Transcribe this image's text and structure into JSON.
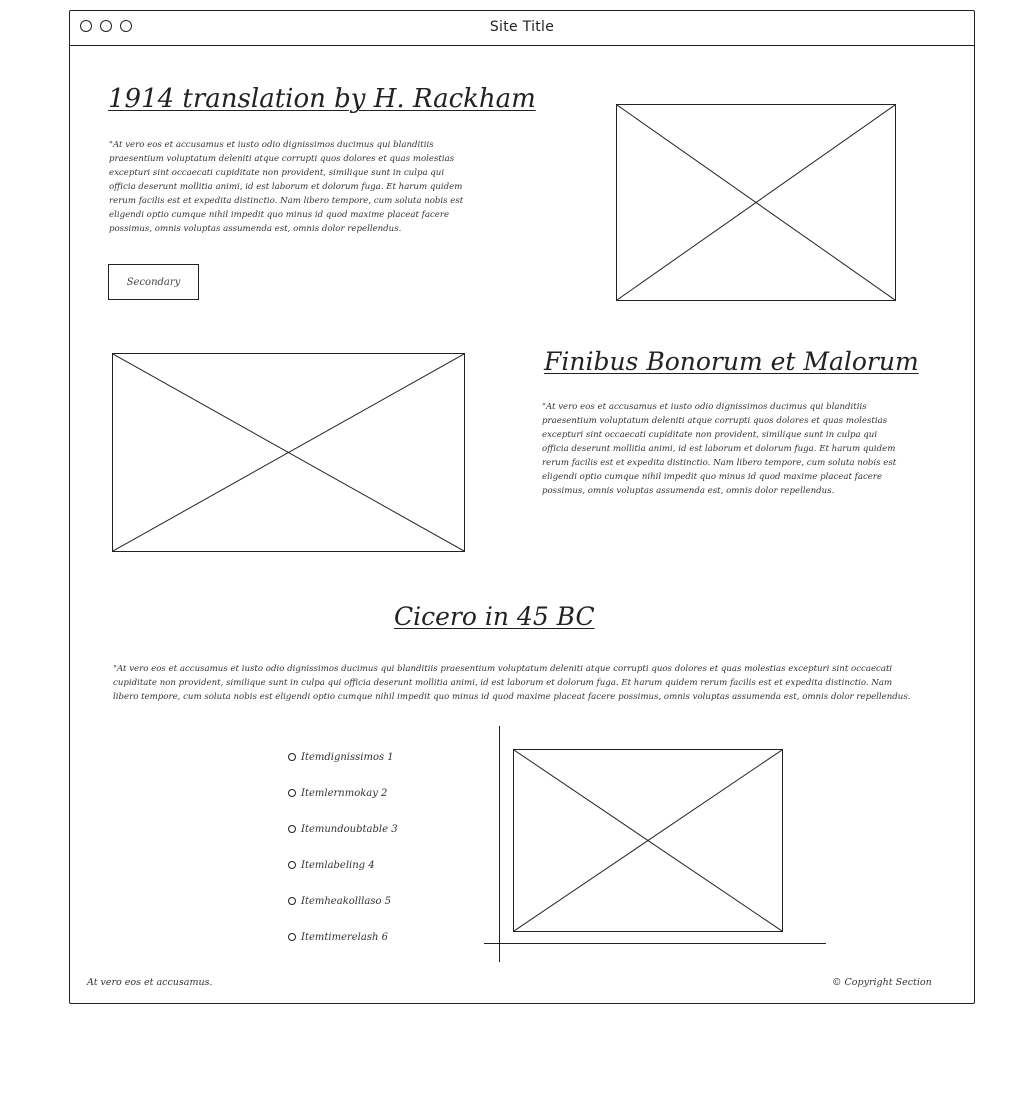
{
  "window": {
    "site_title": "Site Title"
  },
  "hero": {
    "title": "1914 translation by H. Rackham",
    "paragraph": "\"At vero eos et accusamus et iusto odio dignissimos ducimus qui blanditiis praesentium voluptatum deleniti atque corrupti quos dolores et quas molestias excepturi sint occaecati cupiditate non provident, similique sunt in culpa qui officia deserunt mollitia animi, id est laborum et dolorum fuga. Et harum quidem rerum facilis est et expedita distinctio. Nam libero tempore, cum soluta nobis est eligendi optio cumque nihil impedit quo minus id quod maxime placeat facere possimus, omnis voluptas assumenda est, omnis dolor repellendus.",
    "button_label": "Secondary"
  },
  "section2": {
    "title": "Finibus Bonorum et Malorum",
    "paragraph": "\"At vero eos et accusamus et iusto odio dignissimos ducimus qui blanditiis praesentium voluptatum deleniti atque corrupti quos dolores et quas molestias excepturi sint occaecati cupiditate non provident, similique sunt in culpa qui officia deserunt mollitia animi, id est laborum et dolorum fuga. Et harum quidem rerum facilis est et expedita distinctio. Nam libero tempore, cum soluta nobis est eligendi optio cumque nihil impedit quo minus id quod maxime placeat facere possimus, omnis voluptas assumenda est, omnis dolor repellendus."
  },
  "section3": {
    "title": "Cicero in 45 BC",
    "paragraph": "\"At vero eos et accusamus et iusto odio dignissimos ducimus qui blanditiis praesentium voluptatum deleniti atque corrupti quos dolores et quas molestias excepturi sint occaecati cupiditate non provident, similique sunt in culpa qui officia deserunt mollitia animi, id est laborum et dolorum fuga. Et harum quidem rerum facilis est et expedita distinctio. Nam libero tempore, cum soluta nobis est eligendi optio cumque nihil impedit quo minus id quod maxime placeat facere possimus, omnis voluptas assumenda est, omnis dolor repellendus.",
    "list_items": [
      "Itemdignissimos 1",
      "Itemlernmokay 2",
      "Itemundoubtable 3",
      "Itemlabeling 4",
      "Itemheakolllaso 5",
      "Itemtimerelash 6"
    ]
  },
  "footer": {
    "left_text": "At vero eos et accusamus.",
    "right_text": "© Copyright Section"
  }
}
